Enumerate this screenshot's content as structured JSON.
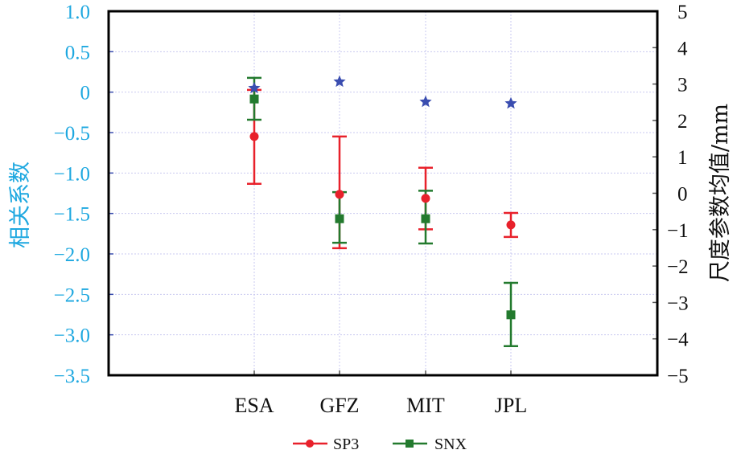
{
  "chart_data": {
    "type": "scatter",
    "categories": [
      "ESA",
      "GFZ",
      "MIT",
      "JPL"
    ],
    "ylabel_left": "相关系数",
    "ylabel_right": "尺度参数均值/mm",
    "ylim_left": [
      -3.5,
      1.0
    ],
    "ylim_right": [
      -5,
      5
    ],
    "yticks_left": [
      "1.0",
      "0.5",
      "0",
      "−0.5",
      "−1.0",
      "−1.5",
      "−2.0",
      "−2.5",
      "−3.0",
      "−3.5"
    ],
    "yticks_left_values": [
      1.0,
      0.5,
      0,
      -0.5,
      -1.0,
      -1.5,
      -2.0,
      -2.5,
      -3.0,
      -3.5
    ],
    "yticks_right": [
      "5",
      "4",
      "3",
      "2",
      "1",
      "0",
      "−1",
      "−2",
      "−3",
      "−4",
      "−5"
    ],
    "yticks_right_values": [
      5,
      4,
      3,
      2,
      1,
      0,
      -1,
      -2,
      -3,
      -4,
      -5
    ],
    "grid": true,
    "legend_position": "bottom-center",
    "correlation": {
      "axis": "left",
      "marker": "star",
      "color": "#3a4db0",
      "values": [
        0.05,
        0.13,
        -0.12,
        -0.14
      ]
    },
    "series": [
      {
        "name": "SP3",
        "axis": "right",
        "marker": "circle",
        "color": "#e8212b",
        "values": [
          1.56,
          -0.03,
          -0.14,
          -0.87
        ],
        "lower": [
          0.26,
          -1.51,
          -0.99,
          -1.2
        ],
        "upper": [
          2.84,
          1.56,
          0.7,
          -0.54
        ]
      },
      {
        "name": "SNX",
        "axis": "right",
        "marker": "square",
        "color": "#237a2e",
        "values": [
          2.59,
          -0.7,
          -0.7,
          -3.34
        ],
        "lower": [
          2.02,
          -1.36,
          -1.38,
          -4.2
        ],
        "upper": [
          3.17,
          0.03,
          0.07,
          -2.46
        ]
      }
    ]
  }
}
